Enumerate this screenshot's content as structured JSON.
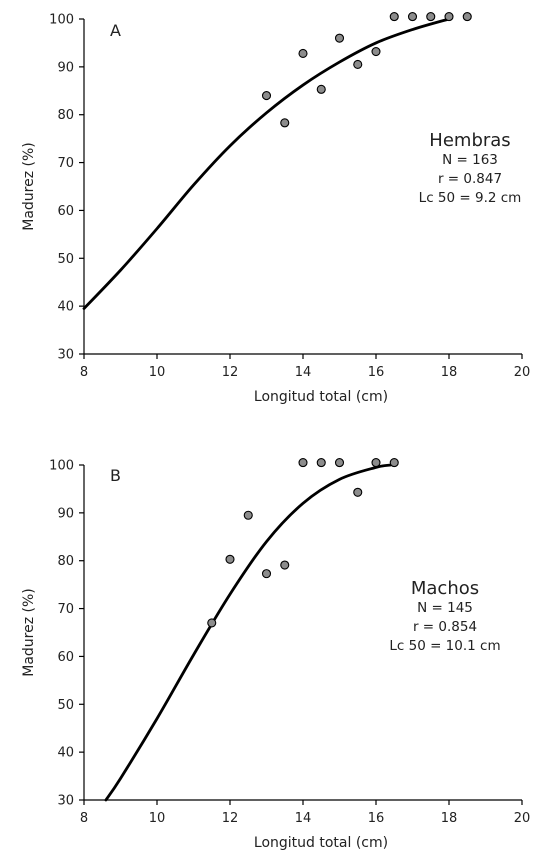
{
  "chart_data": [
    {
      "type": "scatter",
      "panel_label": "A",
      "xlabel": "Longitud total (cm)",
      "ylabel": "Madurez (%)",
      "xlim": [
        8,
        20
      ],
      "ylim": [
        30,
        100
      ],
      "x_ticks": [
        8,
        10,
        12,
        14,
        16,
        18,
        20
      ],
      "y_ticks": [
        30,
        40,
        50,
        60,
        70,
        80,
        90,
        100
      ],
      "x_tick_labels": [
        "8",
        "10",
        "12",
        "14",
        "16",
        "18",
        "20"
      ],
      "y_tick_labels": [
        "30",
        "40",
        "50",
        "60",
        "70",
        "80",
        "90",
        "100"
      ],
      "legend": {
        "title": "Hembras",
        "lines": [
          "N = 163",
          "r = 0.847",
          "Lc 50 = 9.2 cm"
        ],
        "placement": "right"
      },
      "points": [
        {
          "x": 13.0,
          "y": 84
        },
        {
          "x": 13.5,
          "y": 78.3
        },
        {
          "x": 14.0,
          "y": 92.8
        },
        {
          "x": 14.5,
          "y": 85.3
        },
        {
          "x": 15.0,
          "y": 96
        },
        {
          "x": 15.5,
          "y": 90.5
        },
        {
          "x": 16.0,
          "y": 93.2
        },
        {
          "x": 16.5,
          "y": 100.5
        },
        {
          "x": 17.0,
          "y": 100.5
        },
        {
          "x": 17.5,
          "y": 100.5
        },
        {
          "x": 18.0,
          "y": 100.5
        },
        {
          "x": 18.5,
          "y": 100.5
        }
      ],
      "fit_curve": [
        {
          "x": 8.0,
          "y": 39.5
        },
        {
          "x": 9.0,
          "y": 47.5
        },
        {
          "x": 10.0,
          "y": 56.2
        },
        {
          "x": 11.0,
          "y": 65.3
        },
        {
          "x": 12.0,
          "y": 73.5
        },
        {
          "x": 13.0,
          "y": 80.4
        },
        {
          "x": 14.0,
          "y": 86.2
        },
        {
          "x": 15.0,
          "y": 91.0
        },
        {
          "x": 16.0,
          "y": 95.0
        },
        {
          "x": 17.0,
          "y": 97.8
        },
        {
          "x": 18.0,
          "y": 100.0
        }
      ]
    },
    {
      "type": "scatter",
      "panel_label": "B",
      "xlabel": "Longitud total (cm)",
      "ylabel": "Madurez (%)",
      "xlim": [
        8,
        20
      ],
      "ylim": [
        30,
        100
      ],
      "x_ticks": [
        8,
        10,
        12,
        14,
        16,
        18,
        20
      ],
      "y_ticks": [
        30,
        40,
        50,
        60,
        70,
        80,
        90,
        100
      ],
      "x_tick_labels": [
        "8",
        "10",
        "12",
        "14",
        "16",
        "18",
        "20"
      ],
      "y_tick_labels": [
        "30",
        "40",
        "50",
        "60",
        "70",
        "80",
        "90",
        "100"
      ],
      "legend": {
        "title": "Machos",
        "lines": [
          "N = 145",
          "r = 0.854",
          "Lc 50 = 10.1 cm"
        ],
        "placement": "right"
      },
      "points": [
        {
          "x": 11.5,
          "y": 67
        },
        {
          "x": 12.0,
          "y": 80.3
        },
        {
          "x": 12.5,
          "y": 89.5
        },
        {
          "x": 13.0,
          "y": 77.3
        },
        {
          "x": 13.5,
          "y": 79.1
        },
        {
          "x": 14.0,
          "y": 100.5
        },
        {
          "x": 14.5,
          "y": 100.5
        },
        {
          "x": 15.0,
          "y": 100.5
        },
        {
          "x": 15.5,
          "y": 94.3
        },
        {
          "x": 16.0,
          "y": 100.5
        },
        {
          "x": 16.5,
          "y": 100.5
        }
      ],
      "fit_curve": [
        {
          "x": 8.6,
          "y": 30.0
        },
        {
          "x": 9.0,
          "y": 34.5
        },
        {
          "x": 10.0,
          "y": 47.0
        },
        {
          "x": 11.0,
          "y": 60.3
        },
        {
          "x": 12.0,
          "y": 73.0
        },
        {
          "x": 13.0,
          "y": 84.0
        },
        {
          "x": 14.0,
          "y": 92.0
        },
        {
          "x": 15.0,
          "y": 97.0
        },
        {
          "x": 16.0,
          "y": 99.5
        },
        {
          "x": 16.4,
          "y": 100.0
        }
      ]
    }
  ]
}
